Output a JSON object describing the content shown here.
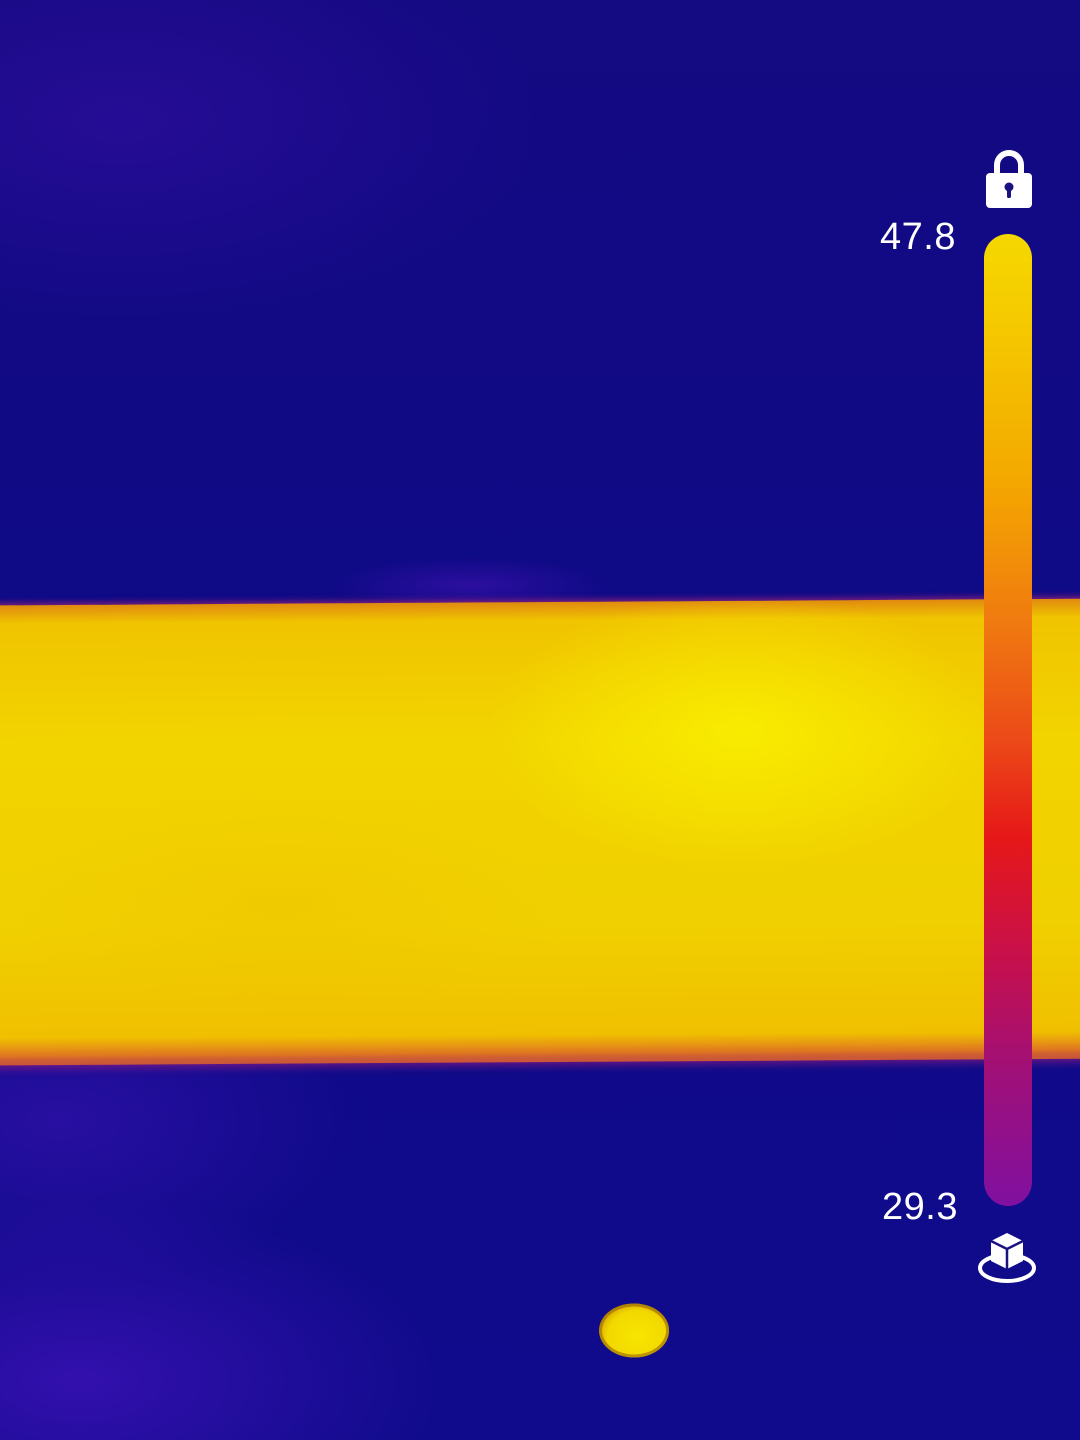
{
  "thermal_view": {
    "palette": "iron",
    "colors": {
      "cold": "#100b8c",
      "hot": "#f2d400",
      "mid": "#e61818"
    }
  },
  "temperature_scale": {
    "max": "47.8",
    "min": "29.3",
    "lock_icon": "lock-icon",
    "isotherm_icon": "cube-icon"
  }
}
